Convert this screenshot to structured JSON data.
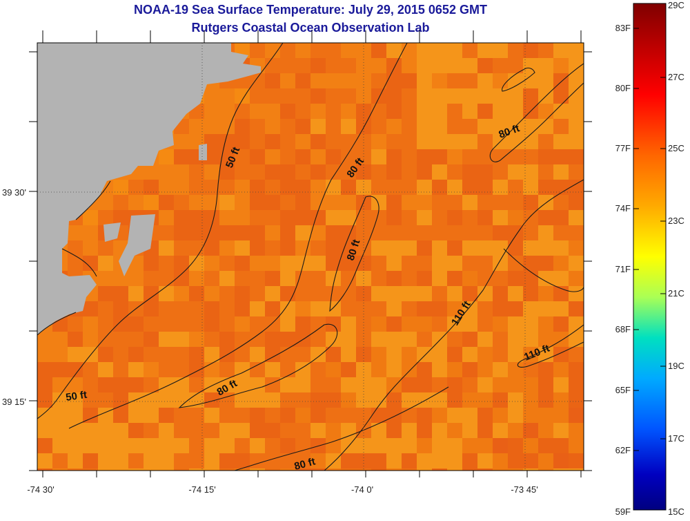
{
  "header": {
    "title": "NOAA-19 Sea Surface Temperature:  July 29, 2015 0652 GMT",
    "subtitle": "Rutgers Coastal Ocean Observation Lab"
  },
  "map": {
    "lon_ticks": [
      "-74 30'",
      "-74 15'",
      "-74 0'",
      "-73 45'"
    ],
    "lat_ticks": [
      "39 30'",
      "39 15'"
    ],
    "contour_labels": [
      "50 ft",
      "50 ft",
      "80 ft",
      "80 ft",
      "80 ft",
      "80 ft",
      "80 ft",
      "110 ft",
      "110 ft"
    ],
    "colors": {
      "land": "#b3b3b3",
      "sea_base": "#f07a12",
      "contour": "#1a1a1a"
    }
  },
  "colorbar": {
    "fahrenheit": [
      "83F",
      "80F",
      "77F",
      "74F",
      "71F",
      "68F",
      "65F",
      "62F",
      "59F"
    ],
    "celsius": [
      "29C",
      "27C",
      "25C",
      "23C",
      "21C",
      "19C",
      "17C",
      "15C"
    ],
    "gradient": [
      "#800000",
      "#c00000",
      "#ff0000",
      "#ff6600",
      "#ffaa00",
      "#ffff00",
      "#aaff55",
      "#00e0c0",
      "#00aaff",
      "#0055ff",
      "#0000c0",
      "#000080"
    ]
  }
}
